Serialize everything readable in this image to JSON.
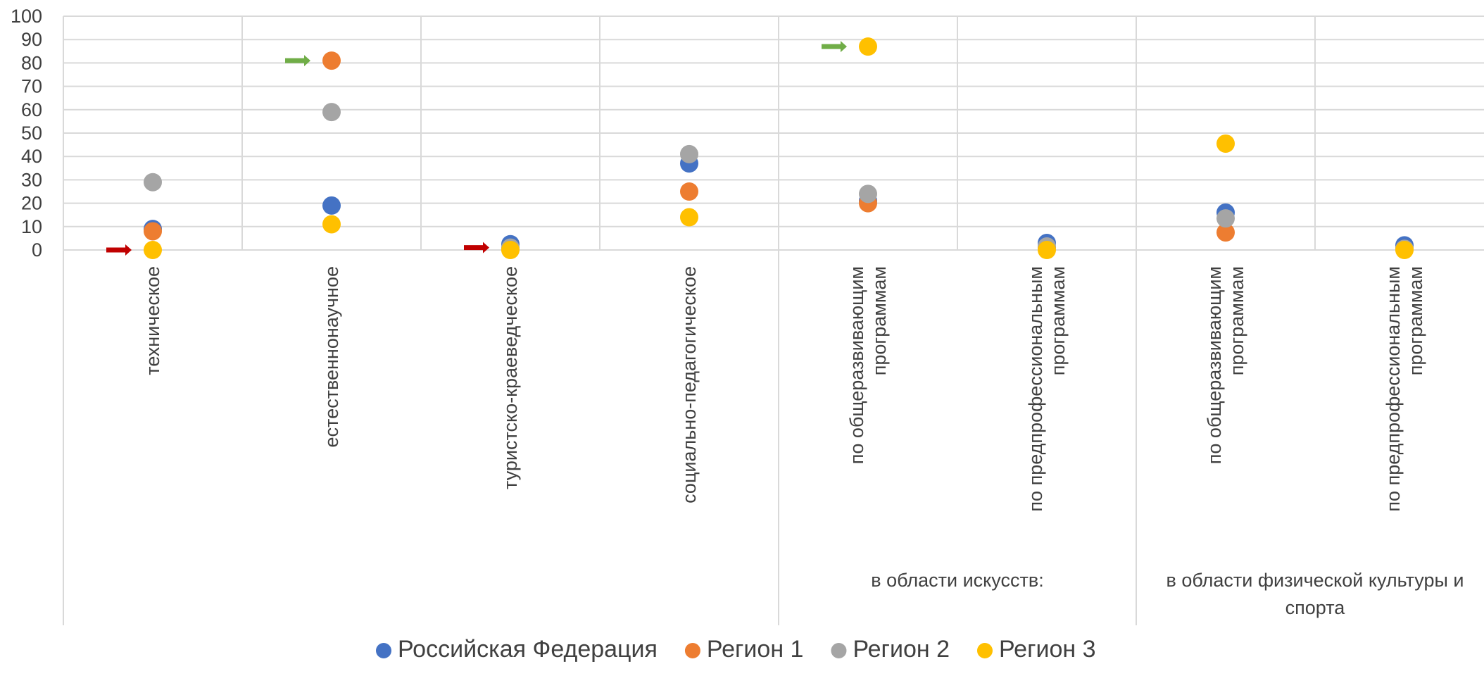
{
  "chart_data": {
    "type": "scatter",
    "title": "",
    "xlabel": "",
    "ylabel": "",
    "ylim": [
      0,
      100
    ],
    "yticks": [
      "0",
      "10",
      "20",
      "30",
      "40",
      "50",
      "60",
      "70",
      "80",
      "90",
      "100"
    ],
    "grid": true,
    "legend_position": "bottom",
    "categories": [
      "техническое",
      "естественнонаучное",
      "туристско-краеведческое",
      "социально-педагогическое",
      "по общеразвивающим программам",
      "по предпрофессиональным программам",
      "по общеразвивающим программам",
      "по предпрофессиональным программам"
    ],
    "category_lines": [
      [
        "техническое"
      ],
      [
        "естественнонаучное"
      ],
      [
        "туристско-краеведческое"
      ],
      [
        "социально-педагогическое"
      ],
      [
        "по общеразвивающим",
        "программам"
      ],
      [
        "по предпрофессиональным",
        "программам"
      ],
      [
        "по общеразвивающим",
        "программам"
      ],
      [
        "по предпрофессиональным",
        "программам"
      ]
    ],
    "groups": [
      {
        "lines": [
          "в области искусств:"
        ],
        "span": [
          4,
          5
        ]
      },
      {
        "lines": [
          "в области физической культуры и",
          "спорта"
        ],
        "span": [
          6,
          7
        ]
      }
    ],
    "series": [
      {
        "name": "Российская Федерация",
        "color": "#4472C4",
        "values": [
          9,
          19,
          2.5,
          37,
          21,
          3,
          16,
          2
        ]
      },
      {
        "name": "Регион 1",
        "color": "#ED7D31",
        "values": [
          8,
          81,
          0.5,
          25,
          20,
          1,
          7.5,
          0.5
        ]
      },
      {
        "name": "Регион 2",
        "color": "#A5A5A5",
        "values": [
          29,
          59,
          1,
          41,
          24,
          1.5,
          13.5,
          0.5
        ]
      },
      {
        "name": "Регион 3",
        "color": "#FFC000",
        "values": [
          0,
          11,
          0,
          14,
          87,
          0,
          45.5,
          0
        ]
      }
    ],
    "annotations": [
      {
        "type": "arrow",
        "color": "#C00000",
        "category": 0,
        "value": 0
      },
      {
        "type": "arrow",
        "color": "#70AD47",
        "category": 1,
        "value": 81
      },
      {
        "type": "arrow",
        "color": "#C00000",
        "category": 2,
        "value": 1
      },
      {
        "type": "arrow",
        "color": "#70AD47",
        "category": 4,
        "value": 87
      }
    ]
  }
}
